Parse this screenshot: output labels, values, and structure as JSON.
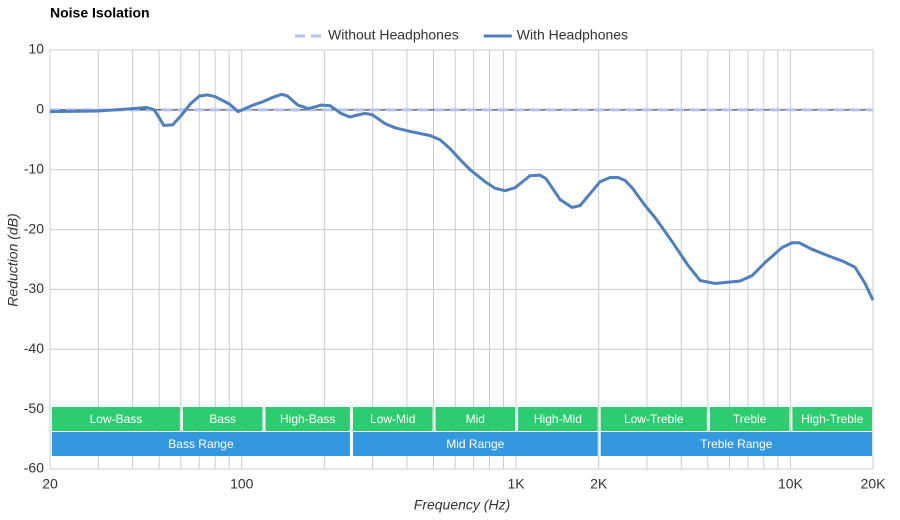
{
  "chart_data": {
    "type": "line",
    "title": "Noise Isolation",
    "x_label": "Frequency (Hz)",
    "y_label": "Reduction (dB)",
    "log_x": true,
    "grid": true,
    "legend": "top",
    "xlim": [
      20,
      20000
    ],
    "ylim": [
      -60,
      10
    ],
    "xticks": [
      20,
      100,
      {
        "value": 1000,
        "label": "1K"
      },
      {
        "value": 2000,
        "label": "2K"
      },
      {
        "value": 10000,
        "label": "10K"
      },
      {
        "value": 20000,
        "label": "20K"
      }
    ],
    "yticks": [
      10,
      0,
      -10,
      -20,
      -30,
      -40,
      -50,
      -60
    ],
    "x": [
      20,
      30,
      40,
      45,
      48,
      52,
      56,
      60,
      65,
      70,
      75,
      80,
      90,
      97,
      110,
      120,
      130,
      140,
      147,
      160,
      175,
      195,
      210,
      230,
      248,
      262,
      281,
      299,
      333,
      362,
      411,
      486,
      528,
      575,
      625,
      680,
      771,
      838,
      912,
      992,
      1124,
      1223,
      1286,
      1447,
      1600,
      1711,
      1861,
      2024,
      2200,
      2354,
      2496,
      2648,
      2953,
      3212,
      3704,
      4236,
      4686,
      5314,
      6556,
      7250,
      8086,
      9326,
      10144,
      10758,
      11996,
      13952,
      15560,
      17208,
      18718,
      20000
    ],
    "series": [
      {
        "name": "Without Headphones",
        "color": "#b3c3f7",
        "dashed": true,
        "values": [
          0,
          0,
          0,
          0,
          0,
          0,
          0,
          0,
          0,
          0,
          0,
          0,
          0,
          0,
          0,
          0,
          0,
          0,
          0,
          0,
          0,
          0,
          0,
          0,
          0,
          0,
          0,
          0,
          0,
          0,
          0,
          0,
          0,
          0,
          0,
          0,
          0,
          0,
          0,
          0,
          0,
          0,
          0,
          0,
          0,
          0,
          0,
          0,
          0,
          0,
          0,
          0,
          0,
          0,
          0,
          0,
          0,
          0,
          0,
          0,
          0,
          0,
          0,
          0,
          0,
          0,
          0,
          0,
          0,
          0
        ]
      },
      {
        "name": "With Headphones",
        "color": "#4f80bd",
        "dashed": false,
        "values": [
          -0.3,
          -0.2,
          0.2,
          0.4,
          0,
          -2.6,
          -2.5,
          -1,
          1,
          2.3,
          2.5,
          2.2,
          1,
          -0.3,
          0.8,
          1.4,
          2.1,
          2.6,
          2.3,
          0.8,
          0.2,
          0.8,
          0.7,
          -0.6,
          -1.2,
          -0.9,
          -0.6,
          -0.8,
          -2.3,
          -3,
          -3.6,
          -4.3,
          -5,
          -6.5,
          -8.3,
          -10,
          -12,
          -13.1,
          -13.5,
          -13,
          -11,
          -10.9,
          -11.5,
          -15,
          -16.3,
          -16,
          -14,
          -12,
          -11.3,
          -11.3,
          -11.8,
          -13,
          -16,
          -18,
          -22,
          -26,
          -28.5,
          -29,
          -28.6,
          -27.7,
          -25.5,
          -23,
          -22.2,
          -22.2,
          -23.3,
          -24.5,
          -25.3,
          -26.3,
          -29,
          -31.8
        ]
      }
    ],
    "bands": [
      {
        "label": "Low-Bass",
        "from": 20,
        "to": 60
      },
      {
        "label": "Bass",
        "from": 60,
        "to": 120
      },
      {
        "label": "High-Bass",
        "from": 120,
        "to": 250
      },
      {
        "label": "Low-Mid",
        "from": 250,
        "to": 500
      },
      {
        "label": "Mid",
        "from": 500,
        "to": 1000
      },
      {
        "label": "High-Mid",
        "from": 1000,
        "to": 2000
      },
      {
        "label": "Low-Treble",
        "from": 2000,
        "to": 5000
      },
      {
        "label": "Treble",
        "from": 5000,
        "to": 10000
      },
      {
        "label": "High-Treble",
        "from": 10000,
        "to": 20000
      }
    ],
    "band_color": "#2ecc71",
    "ranges": [
      {
        "label": "Bass Range",
        "from": 20,
        "to": 250
      },
      {
        "label": "Mid Range",
        "from": 250,
        "to": 2000
      },
      {
        "label": "Treble Range",
        "from": 2000,
        "to": 20000
      }
    ],
    "range_color": "#3498e0"
  }
}
